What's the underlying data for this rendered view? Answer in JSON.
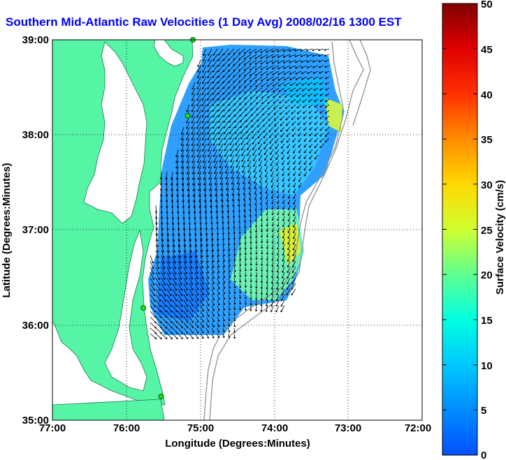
{
  "title": "Southern Mid-Atlantic Raw Velocities (1 Day Avg) 2008/02/16 1300 EST",
  "map": {
    "x_ticks": [
      "77:00",
      "76:00",
      "75:00",
      "74:00",
      "73:00",
      "72:00"
    ],
    "y_ticks": [
      "39:00",
      "38:00",
      "37:00",
      "36:00",
      "35:00"
    ],
    "xlabel": "Longitude (Degrees:Minutes)",
    "ylabel": "Latitude (Degrees:Minutes)",
    "lon_range": [
      -77,
      -72
    ],
    "lat_range": [
      35,
      39
    ],
    "land_color": "#55f5a5",
    "ocean_color": "#ffffff",
    "grid": true,
    "stations": [
      {
        "lon": -75.1,
        "lat": 39.0
      },
      {
        "lon": -75.17,
        "lat": 38.2
      },
      {
        "lon": -75.77,
        "lat": 36.18
      },
      {
        "lon": -75.53,
        "lat": 35.25
      }
    ]
  },
  "colorbar": {
    "label": "Surface Velocity (cm/s)",
    "ticks": [
      "50",
      "45",
      "40",
      "35",
      "30",
      "25",
      "20",
      "15",
      "10",
      "5",
      "0"
    ],
    "min": 0,
    "max": 50,
    "colormap": "jet"
  }
}
